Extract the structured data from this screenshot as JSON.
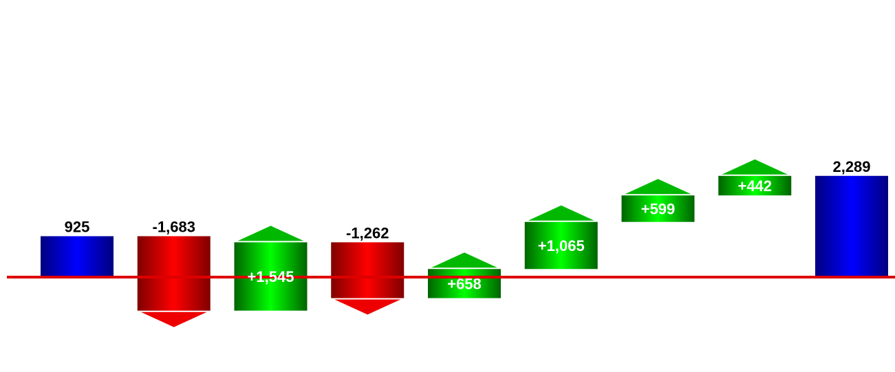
{
  "chart_data": {
    "type": "bar",
    "subtype": "waterfall",
    "title": "",
    "xlabel": "",
    "ylabel": "",
    "grid": false,
    "legend": "none",
    "baseline": 0,
    "ylim": [
      -880,
      2370
    ],
    "steps": [
      {
        "kind": "total",
        "value": 925,
        "label": "925"
      },
      {
        "kind": "delta",
        "value": -1683,
        "label": "-1,683"
      },
      {
        "kind": "delta",
        "value": 1545,
        "label": "+1,545"
      },
      {
        "kind": "delta",
        "value": -1262,
        "label": "-1,262"
      },
      {
        "kind": "delta",
        "value": 658,
        "label": "+658"
      },
      {
        "kind": "delta",
        "value": 1065,
        "label": "+1,065"
      },
      {
        "kind": "delta",
        "value": 599,
        "label": "+599"
      },
      {
        "kind": "delta",
        "value": 442,
        "label": "+442"
      },
      {
        "kind": "total",
        "value": 2289,
        "label": "2,289"
      }
    ],
    "colors": {
      "total": "#0000dd",
      "increase": "#00cc00",
      "decrease": "#e00000",
      "baseline": "#dd0000",
      "label_outside": "#000000",
      "label_inside": "#ffffff"
    }
  }
}
